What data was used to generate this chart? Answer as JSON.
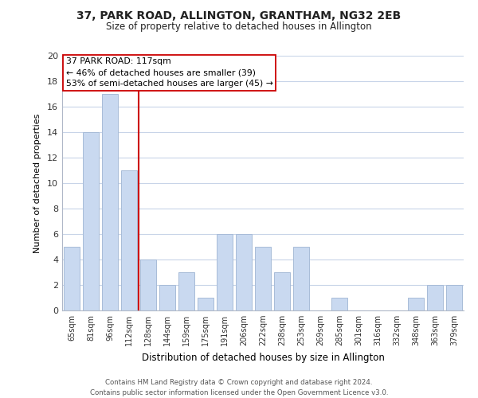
{
  "title": "37, PARK ROAD, ALLINGTON, GRANTHAM, NG32 2EB",
  "subtitle": "Size of property relative to detached houses in Allington",
  "xlabel": "Distribution of detached houses by size in Allington",
  "ylabel": "Number of detached properties",
  "categories": [
    "65sqm",
    "81sqm",
    "96sqm",
    "112sqm",
    "128sqm",
    "144sqm",
    "159sqm",
    "175sqm",
    "191sqm",
    "206sqm",
    "222sqm",
    "238sqm",
    "253sqm",
    "269sqm",
    "285sqm",
    "301sqm",
    "316sqm",
    "332sqm",
    "348sqm",
    "363sqm",
    "379sqm"
  ],
  "values": [
    5,
    14,
    17,
    11,
    4,
    2,
    3,
    1,
    6,
    6,
    5,
    3,
    5,
    0,
    1,
    0,
    0,
    0,
    1,
    2,
    2
  ],
  "bar_color": "#c9d9f0",
  "bar_edge_color": "#a8bcd8",
  "vline_x": 3.5,
  "vline_color": "#cc0000",
  "annotation_title": "37 PARK ROAD: 117sqm",
  "annotation_line1": "← 46% of detached houses are smaller (39)",
  "annotation_line2": "53% of semi-detached houses are larger (45) →",
  "annotation_box_color": "#ffffff",
  "annotation_box_edge": "#cc0000",
  "ylim": [
    0,
    20
  ],
  "yticks": [
    0,
    2,
    4,
    6,
    8,
    10,
    12,
    14,
    16,
    18,
    20
  ],
  "background_color": "#ffffff",
  "grid_color": "#c8d4e8",
  "footer_line1": "Contains HM Land Registry data © Crown copyright and database right 2024.",
  "footer_line2": "Contains public sector information licensed under the Open Government Licence v3.0."
}
